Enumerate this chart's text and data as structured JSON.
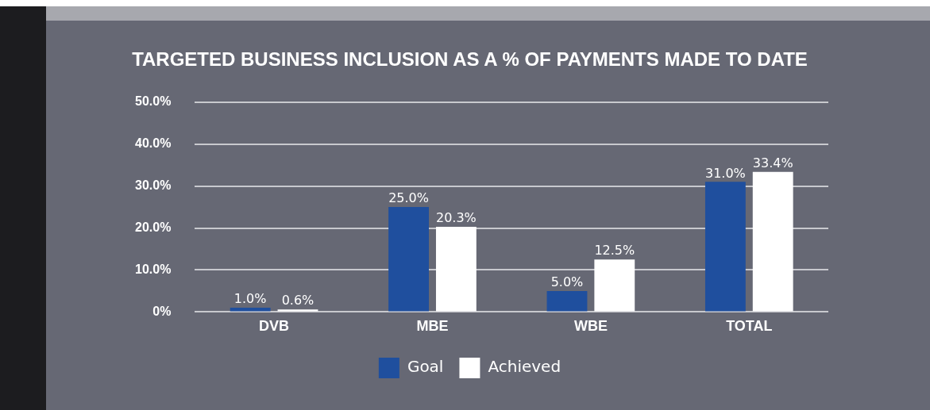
{
  "chart_data": {
    "type": "bar",
    "title": "TARGETED BUSINESS INCLUSION AS A % OF PAYMENTS MADE TO DATE",
    "categories": [
      "DVB",
      "MBE",
      "WBE",
      "TOTAL"
    ],
    "series": [
      {
        "name": "Goal",
        "color": "#1f4f9e",
        "values": [
          1.0,
          25.0,
          5.0,
          31.0
        ],
        "value_labels": [
          "1.0%",
          "25.0%",
          "5.0%",
          "31.0%"
        ]
      },
      {
        "name": "Achieved",
        "color": "#ffffff",
        "values": [
          0.6,
          20.3,
          12.5,
          33.4
        ],
        "value_labels": [
          "0.6%",
          "20.3%",
          "12.5%",
          "33.4%"
        ]
      }
    ],
    "ylim": [
      0,
      50
    ],
    "yticks": [
      {
        "value": 0,
        "label": "0%"
      },
      {
        "value": 10,
        "label": "10.0%"
      },
      {
        "value": 20,
        "label": "20.0%"
      },
      {
        "value": 30,
        "label": "30.0%"
      },
      {
        "value": 40,
        "label": "40.0%"
      },
      {
        "value": 50,
        "label": "50.0%"
      }
    ],
    "grid": "y",
    "legend": "bottom"
  }
}
